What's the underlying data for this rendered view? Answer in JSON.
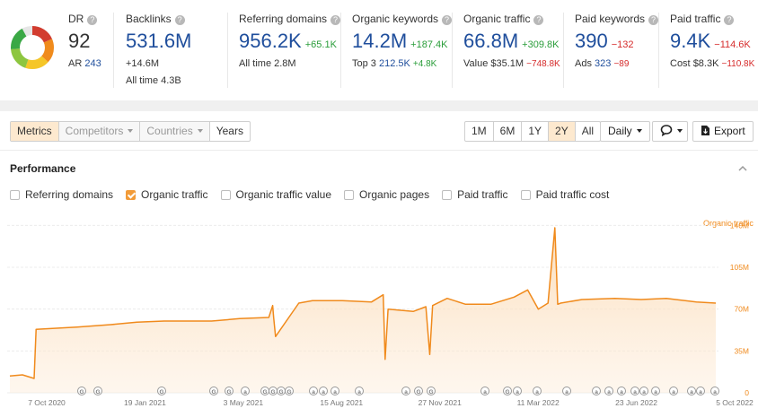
{
  "metrics": {
    "dr": {
      "label": "DR",
      "value": "92",
      "ar_label": "AR",
      "ar_value": "243"
    },
    "backlinks": {
      "label": "Backlinks",
      "value": "531.6M",
      "delta": "+14.6M",
      "sub_label": "All time",
      "sub_value": "4.3B"
    },
    "referring_domains": {
      "label": "Referring domains",
      "value": "956.2K",
      "delta": "+65.1K",
      "sub_label": "All time",
      "sub_value": "2.8M"
    },
    "organic_keywords": {
      "label": "Organic keywords",
      "value": "14.2M",
      "delta": "+187.4K",
      "sub_label": "Top 3",
      "sub_value": "212.5K",
      "sub_delta": "+4.8K"
    },
    "organic_traffic": {
      "label": "Organic traffic",
      "value": "66.8M",
      "delta": "+309.8K",
      "sub_label": "Value",
      "sub_value": "$35.1M",
      "sub_delta": "−748.8K"
    },
    "paid_keywords": {
      "label": "Paid keywords",
      "value": "390",
      "delta": "−132",
      "sub_label": "Ads",
      "sub_value": "323",
      "sub_delta": "−89"
    },
    "paid_traffic": {
      "label": "Paid traffic",
      "value": "9.4K",
      "delta": "−114.6K",
      "sub_label": "Cost",
      "sub_value": "$8.3K",
      "sub_delta": "−110.8K"
    },
    "help_glyph": "?",
    "dr_ring": {
      "score": 92,
      "colors": [
        "#d23c2f",
        "#f08b1c",
        "#f5c628",
        "#8dc63f",
        "#3aa845"
      ]
    }
  },
  "toolbar": {
    "tabs": [
      "Metrics",
      "Competitors",
      "Countries",
      "Years"
    ],
    "active_tab": "Metrics",
    "ranges": [
      "1M",
      "6M",
      "1Y",
      "2Y",
      "All"
    ],
    "active_range": "2Y",
    "interval": "Daily",
    "annotation_icon": "comment-icon",
    "export_label": "Export",
    "export_icon": "export-icon"
  },
  "performance": {
    "title": "Performance",
    "checkboxes": [
      {
        "label": "Referring domains",
        "checked": false
      },
      {
        "label": "Organic traffic",
        "checked": true
      },
      {
        "label": "Organic traffic value",
        "checked": false
      },
      {
        "label": "Organic pages",
        "checked": false
      },
      {
        "label": "Paid traffic",
        "checked": false
      },
      {
        "label": "Paid traffic cost",
        "checked": false
      }
    ]
  },
  "chart_data": {
    "type": "area",
    "series": [
      {
        "name": "Organic traffic",
        "color": "#f08a1c",
        "x": [
          "2020-10-07",
          "2020-10-20",
          "2020-11-01",
          "2020-11-03",
          "2020-12-15",
          "2021-01-19",
          "2021-02-15",
          "2021-03-15",
          "2021-04-15",
          "2021-05-03",
          "2021-06-01",
          "2021-07-01",
          "2021-07-05",
          "2021-07-06",
          "2021-07-08",
          "2021-08-01",
          "2021-08-15",
          "2021-09-15",
          "2021-10-15",
          "2021-10-27",
          "2021-10-29",
          "2021-11-01",
          "2021-11-27",
          "2021-12-10",
          "2021-12-14",
          "2021-12-17",
          "2022-01-01",
          "2022-01-20",
          "2022-02-15",
          "2022-03-11",
          "2022-03-25",
          "2022-04-05",
          "2022-04-15",
          "2022-04-22",
          "2022-04-25",
          "2022-04-28",
          "2022-05-20",
          "2022-06-23",
          "2022-07-20",
          "2022-08-15",
          "2022-09-15",
          "2022-10-05"
        ],
        "values": [
          14,
          15,
          12,
          53,
          55,
          57,
          59,
          60,
          60,
          60,
          62,
          63,
          73,
          63,
          47,
          75,
          77,
          77,
          76,
          82,
          28,
          70,
          68,
          72,
          32,
          73,
          79,
          74,
          74,
          80,
          86,
          70,
          75,
          138,
          74,
          75,
          78,
          79,
          78,
          79,
          76,
          75
        ]
      }
    ],
    "x_tick_labels": [
      "7 Oct 2020",
      "19 Jan 2021",
      "3 May 2021",
      "15 Aug 2021",
      "27 Nov 2021",
      "11 Mar 2022",
      "23 Jun 2022",
      "5 Oct 2022"
    ],
    "y_tick_labels": [
      "0",
      "35M",
      "70M",
      "105M",
      "140M"
    ],
    "y_ticks": [
      0,
      35,
      70,
      105,
      140
    ],
    "xlim": [
      "2020-10-07",
      "2022-10-05"
    ],
    "ylim": [
      0,
      150
    ],
    "y_unit": "M",
    "grid": true,
    "series_label_position": "top-right",
    "annotation_markers": [
      "G",
      "G",
      "G",
      "G",
      "G",
      "A",
      "G",
      "G",
      "G",
      "G",
      "A",
      "A",
      "A",
      "A",
      "A",
      "G",
      "G",
      "A",
      "G",
      "A",
      "A",
      "A",
      "A",
      "A",
      "A",
      "A",
      "A",
      "A",
      "A",
      "A",
      "A",
      "A"
    ]
  }
}
